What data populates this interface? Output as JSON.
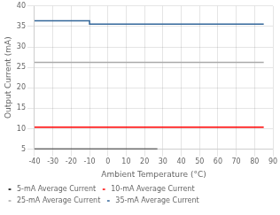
{
  "chart_data": {
    "type": "line",
    "xlabel": "Ambient Temperature (°C)",
    "ylabel": "Output Current (mA)",
    "xlim": [
      -40,
      90
    ],
    "ylim": [
      5,
      40
    ],
    "xticks": [
      -40,
      -30,
      -20,
      -10,
      0,
      10,
      20,
      30,
      40,
      50,
      60,
      70,
      80,
      90
    ],
    "yticks": [
      5,
      10,
      15,
      20,
      25,
      30,
      35,
      40
    ],
    "series": [
      {
        "name": "5-mA Average Current",
        "color": "#000000",
        "x": [
          -40,
          27
        ],
        "values": [
          5.0,
          5.0
        ]
      },
      {
        "name": "10-mA Average Current",
        "color": "#ff0000",
        "x": [
          -40,
          85
        ],
        "values": [
          10.4,
          10.4
        ]
      },
      {
        "name": "25-mA Average Current",
        "color": "#aaaaaa",
        "x": [
          -40,
          85
        ],
        "values": [
          26.2,
          26.2
        ]
      },
      {
        "name": "35-mA Average Current",
        "color": "#336699",
        "x": [
          -40,
          -10,
          -10,
          85
        ],
        "values": [
          36.4,
          36.4,
          35.6,
          35.6
        ]
      }
    ],
    "grid": true,
    "legend": "lower left"
  }
}
